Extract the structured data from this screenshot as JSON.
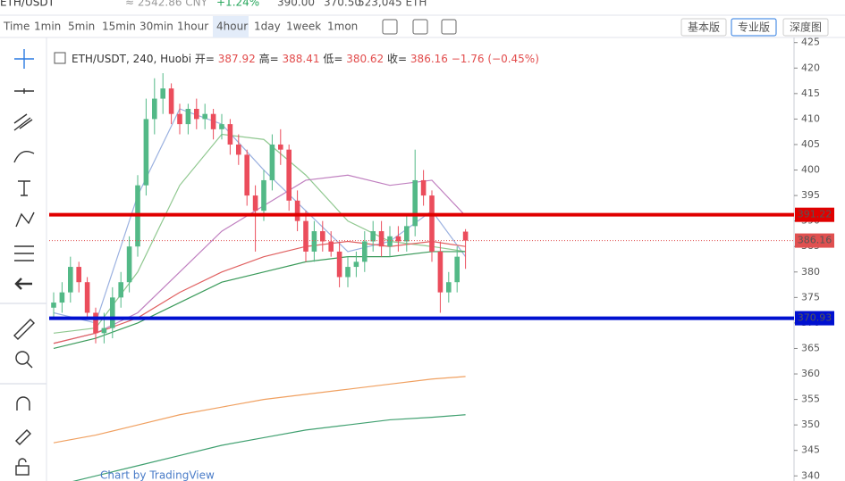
{
  "header": {
    "pair": "ETH/USDT",
    "cny": "≈ 2542.86 CNY",
    "change": "+1.24%",
    "high": "390.00",
    "low": "370.50",
    "volume": "523,045 ETH"
  },
  "toolbar": {
    "intervals": [
      "Time",
      "1min",
      "5min",
      "15min",
      "30min",
      "1hour",
      "4hour",
      "1day",
      "1week",
      "1mon"
    ],
    "selected": 6,
    "views": [
      "基本版",
      "专业版",
      "深度图"
    ],
    "selected_view": 1
  },
  "watermark": "Chart by TradingView",
  "chart_data": {
    "type": "candlestick",
    "title": "ETH/USDT, 240, Huobi",
    "legend": {
      "open_label": "开=",
      "open": "387.92",
      "high_label": "高=",
      "high": "388.41",
      "low_label": "低=",
      "low": "380.62",
      "close_label": "收=",
      "close": "386.16",
      "change": "−1.76 (−0.45%)"
    },
    "up_color": "#53b987",
    "down_color": "#eb4d5c",
    "ylim": [
      339,
      426
    ],
    "yticks": [
      340,
      345,
      350,
      355,
      360,
      365,
      370,
      375,
      380,
      385,
      390,
      395,
      400,
      405,
      410,
      415,
      420,
      425
    ],
    "open": [
      373,
      374,
      376,
      381,
      378,
      372,
      368,
      369,
      375,
      378,
      385,
      397,
      410,
      414,
      416,
      411,
      409,
      412,
      410,
      411,
      408,
      409,
      405,
      403,
      395,
      392,
      398,
      405,
      404,
      394,
      390,
      384,
      388,
      386,
      384,
      379,
      381,
      382,
      386,
      388,
      385,
      387,
      386,
      389,
      398,
      395,
      384,
      376,
      378,
      387.92
    ],
    "high": [
      376,
      378,
      383,
      382,
      379,
      373,
      372,
      377,
      380,
      387,
      399,
      414,
      418,
      419,
      417,
      413,
      413,
      414,
      413,
      412,
      411,
      410,
      407,
      404,
      397,
      400,
      407,
      408,
      405,
      396,
      392,
      390,
      390,
      388,
      386,
      383,
      384,
      388,
      390,
      390,
      389,
      389,
      391,
      404,
      400,
      396,
      386,
      380,
      385,
      388.41
    ],
    "low": [
      371,
      372,
      374,
      376,
      371,
      366,
      366,
      367,
      373,
      376,
      383,
      395,
      407,
      411,
      409,
      407,
      407,
      408,
      408,
      406,
      406,
      403,
      401,
      393,
      384,
      390,
      396,
      401,
      392,
      388,
      382,
      382,
      384,
      383,
      377,
      377,
      379,
      380,
      384,
      383,
      383,
      384,
      384,
      387,
      393,
      382,
      372,
      374,
      376,
      380.62
    ],
    "close": [
      374,
      376,
      381,
      378,
      372,
      368,
      369,
      375,
      378,
      385,
      397,
      410,
      414,
      416,
      411,
      409,
      412,
      410,
      411,
      408,
      409,
      405,
      403,
      395,
      392,
      398,
      405,
      404,
      394,
      390,
      384,
      388,
      386,
      384,
      379,
      381,
      382,
      386,
      388,
      385,
      387,
      386,
      389,
      398,
      395,
      384,
      376,
      378,
      383,
      386.16
    ],
    "ma_x": [
      0,
      5,
      10,
      15,
      20,
      25,
      30,
      35,
      40,
      45,
      49
    ],
    "ma": [
      {
        "color": "#9bb1e0",
        "values": [
          372,
          370,
          395,
          412,
          409,
          400,
          392,
          384,
          386,
          392,
          383
        ]
      },
      {
        "color": "#90c890",
        "values": [
          368,
          369,
          380,
          397,
          407,
          406,
          399,
          390,
          386,
          385,
          384
        ]
      },
      {
        "color": "#c080c0",
        "values": [
          366,
          368,
          372,
          380,
          388,
          393,
          398,
          399,
          397,
          398,
          391
        ]
      },
      {
        "color": "#e06060",
        "values": [
          366,
          368,
          371,
          376,
          380,
          383,
          385,
          386,
          385,
          386,
          385
        ]
      },
      {
        "color": "#3a9a5a",
        "values": [
          365,
          367,
          370,
          374,
          378,
          380,
          382,
          383,
          383,
          384,
          384
        ]
      },
      {
        "color": "#f0a060",
        "values": [
          346.5,
          348,
          350,
          352,
          353.5,
          355,
          356,
          357,
          358,
          359,
          359.5
        ]
      },
      {
        "color": "#40a070",
        "values": [
          338,
          340,
          342,
          344,
          346,
          347.5,
          349,
          350,
          351,
          351.5,
          352
        ]
      }
    ],
    "hlines": [
      {
        "value": 391.22,
        "color": "#e00000"
      },
      {
        "value": 370.93,
        "color": "#0010d0"
      },
      {
        "value": 386.16,
        "color": "#e05050"
      }
    ]
  }
}
